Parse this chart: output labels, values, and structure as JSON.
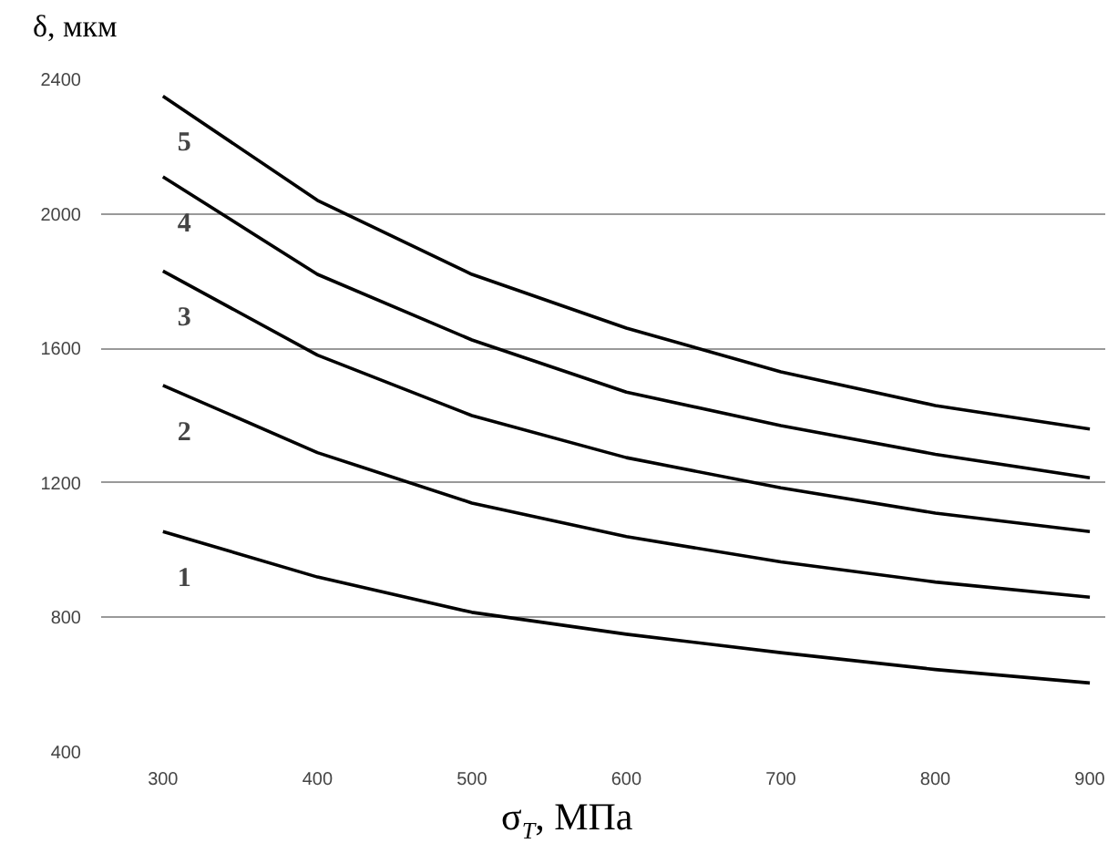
{
  "chart_data": {
    "type": "line",
    "xlabel": "σ$_{T}$, МПа",
    "ylabel": "δ, мкм",
    "x": [
      300,
      400,
      500,
      600,
      700,
      800,
      900
    ],
    "series": [
      {
        "name": "1",
        "color": "#000000",
        "values": [
          1055,
          920,
          815,
          750,
          695,
          645,
          605
        ]
      },
      {
        "name": "2",
        "color": "#000000",
        "values": [
          1490,
          1290,
          1140,
          1040,
          965,
          905,
          860
        ]
      },
      {
        "name": "3",
        "color": "#000000",
        "values": [
          1830,
          1580,
          1400,
          1275,
          1185,
          1110,
          1055
        ]
      },
      {
        "name": "4",
        "color": "#000000",
        "values": [
          2110,
          1820,
          1625,
          1470,
          1370,
          1285,
          1215
        ]
      },
      {
        "name": "5",
        "color": "#000000",
        "values": [
          2350,
          2040,
          1820,
          1660,
          1530,
          1430,
          1360
        ]
      }
    ],
    "xlim": [
      260,
      910
    ],
    "ylim": [
      400,
      2400
    ],
    "xticks": [
      300,
      400,
      500,
      600,
      700,
      800,
      900
    ],
    "yticks": [
      400,
      800,
      1200,
      1600,
      2000,
      2400
    ],
    "grid": "y",
    "marker": "none",
    "line_style": "solid"
  }
}
